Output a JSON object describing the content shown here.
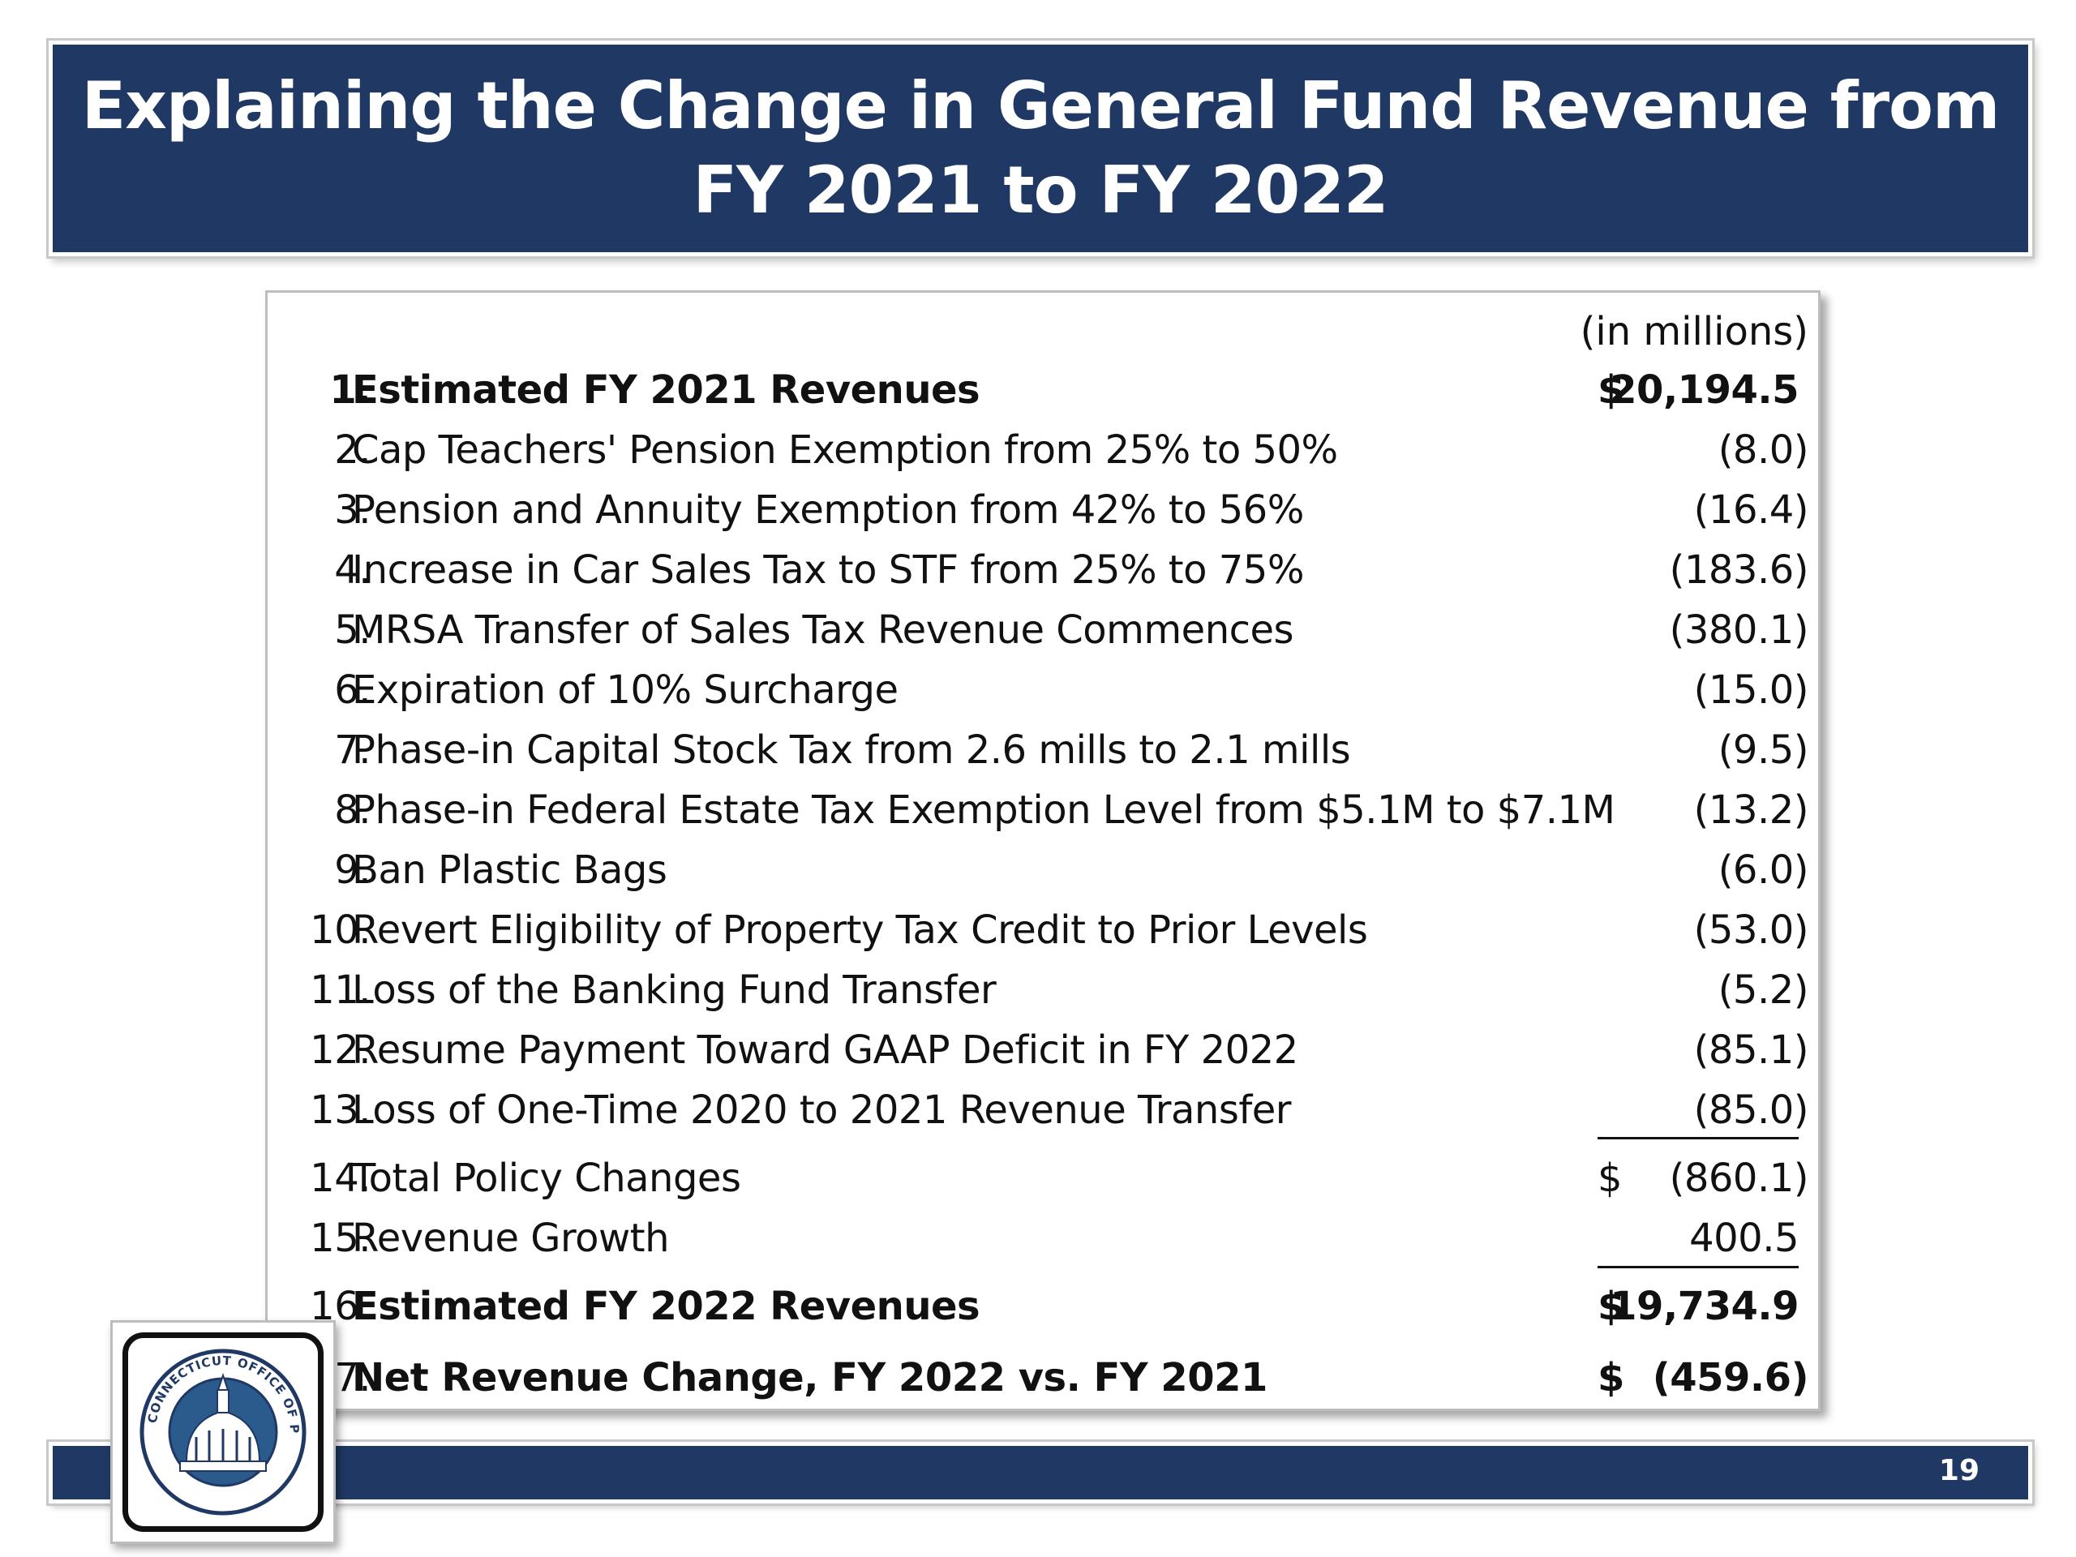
{
  "title": {
    "line1": "Explaining the Change in General Fund Revenue from",
    "line2": "FY 2021 to FY 2022"
  },
  "table": {
    "units": "(in millions)",
    "rows": [
      {
        "num": "1.",
        "label": "Estimated FY 2021 Revenues",
        "currency": "$",
        "value": "20,194.5",
        "bold": true
      },
      {
        "num": "2.",
        "label": "Cap Teachers' Pension Exemption from 25% to 50%",
        "currency": "",
        "value": "(8.0)"
      },
      {
        "num": "3.",
        "label": "Pension and Annuity Exemption from 42% to 56%",
        "currency": "",
        "value": "(16.4)"
      },
      {
        "num": "4.",
        "label": "Increase in Car Sales Tax to STF from 25% to 75%",
        "currency": "",
        "value": "(183.6)"
      },
      {
        "num": "5.",
        "label": "MRSA Transfer of Sales Tax Revenue Commences",
        "currency": "",
        "value": "(380.1)"
      },
      {
        "num": "6.",
        "label": "Expiration of 10% Surcharge",
        "currency": "",
        "value": "(15.0)"
      },
      {
        "num": "7.",
        "label": "Phase-in Capital Stock Tax from 2.6 mills to 2.1 mills",
        "currency": "",
        "value": "(9.5)"
      },
      {
        "num": "8.",
        "label": "Phase-in Federal Estate Tax Exemption Level from $5.1M to $7.1M",
        "currency": "",
        "value": "(13.2)"
      },
      {
        "num": "9.",
        "label": "Ban Plastic Bags",
        "currency": "",
        "value": "(6.0)"
      },
      {
        "num": "10.",
        "label": "Revert Eligibility of Property Tax Credit to Prior Levels",
        "currency": "",
        "value": "(53.0)"
      },
      {
        "num": "11.",
        "label": "Loss of the Banking Fund Transfer",
        "currency": "",
        "value": "(5.2)"
      },
      {
        "num": "12.",
        "label": "Resume Payment Toward GAAP Deficit in FY 2022",
        "currency": "",
        "value": "(85.1)"
      },
      {
        "num": "13.",
        "label": "Loss of One-Time 2020 to 2021 Revenue Transfer",
        "currency": "",
        "value": "(85.0)"
      },
      {
        "num": "14.",
        "label": "Total Policy Changes",
        "currency": "$",
        "value": "(860.1)"
      },
      {
        "num": "15.",
        "label": "Revenue Growth",
        "currency": "",
        "value": "400.5"
      },
      {
        "num": "16.",
        "label": "Estimated FY 2022 Revenues",
        "currency": "$",
        "value": "19,734.9",
        "bold": true
      },
      {
        "num": "17.",
        "label": "Net Revenue Change, FY 2022 vs. FY 2021",
        "currency": "$",
        "value": "(459.6)",
        "bold": true
      }
    ]
  },
  "footer": {
    "page_number": "19"
  },
  "seal": {
    "text": "CONNECTICUT OFFICE OF POLICY AND MANAGEMENT",
    "icon": "capitol-dome-icon"
  },
  "colors": {
    "band": "#1f3864",
    "text": "#111111",
    "title_text": "#ffffff"
  }
}
